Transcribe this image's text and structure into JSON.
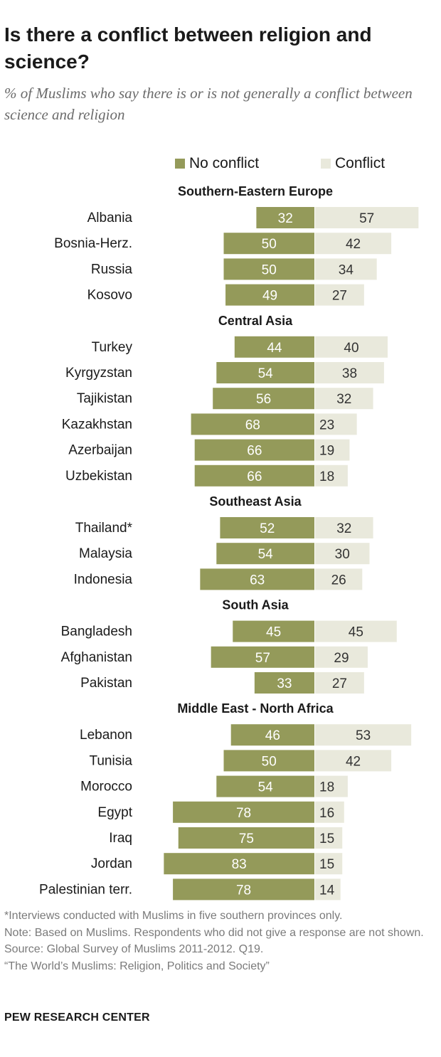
{
  "header": {
    "title": "Is there a conflict between religion and science?",
    "subtitle": "% of Muslims who say there is or is not generally a conflict between science and religion"
  },
  "legend": {
    "no_conflict": "No conflict",
    "conflict": "Conflict"
  },
  "colors": {
    "no_conflict": "#949a5a",
    "conflict": "#e9e9dc",
    "no_conflict_label": "#ffffff",
    "conflict_label": "#333333"
  },
  "chart_data": {
    "type": "bar",
    "orientation": "horizontal-diverging",
    "series": [
      {
        "name": "No conflict"
      },
      {
        "name": "Conflict"
      }
    ],
    "groups": [
      {
        "name": "Southern-Eastern Europe",
        "rows": [
          {
            "label": "Albania",
            "no_conflict": 32,
            "conflict": 57
          },
          {
            "label": "Bosnia-Herz.",
            "no_conflict": 50,
            "conflict": 42
          },
          {
            "label": "Russia",
            "no_conflict": 50,
            "conflict": 34
          },
          {
            "label": "Kosovo",
            "no_conflict": 49,
            "conflict": 27
          }
        ]
      },
      {
        "name": "Central Asia",
        "rows": [
          {
            "label": "Turkey",
            "no_conflict": 44,
            "conflict": 40
          },
          {
            "label": "Kyrgyzstan",
            "no_conflict": 54,
            "conflict": 38
          },
          {
            "label": "Tajikistan",
            "no_conflict": 56,
            "conflict": 32
          },
          {
            "label": "Kazakhstan",
            "no_conflict": 68,
            "conflict": 23
          },
          {
            "label": "Azerbaijan",
            "no_conflict": 66,
            "conflict": 19
          },
          {
            "label": "Uzbekistan",
            "no_conflict": 66,
            "conflict": 18
          }
        ]
      },
      {
        "name": "Southeast Asia",
        "rows": [
          {
            "label": "Thailand*",
            "no_conflict": 52,
            "conflict": 32
          },
          {
            "label": "Malaysia",
            "no_conflict": 54,
            "conflict": 30
          },
          {
            "label": "Indonesia",
            "no_conflict": 63,
            "conflict": 26
          }
        ]
      },
      {
        "name": "South Asia",
        "rows": [
          {
            "label": "Bangladesh",
            "no_conflict": 45,
            "conflict": 45
          },
          {
            "label": "Afghanistan",
            "no_conflict": 57,
            "conflict": 29
          },
          {
            "label": "Pakistan",
            "no_conflict": 33,
            "conflict": 27
          }
        ]
      },
      {
        "name": "Middle East - North Africa",
        "rows": [
          {
            "label": "Lebanon",
            "no_conflict": 46,
            "conflict": 53
          },
          {
            "label": "Tunisia",
            "no_conflict": 50,
            "conflict": 42
          },
          {
            "label": "Morocco",
            "no_conflict": 54,
            "conflict": 18
          },
          {
            "label": "Egypt",
            "no_conflict": 78,
            "conflict": 16
          },
          {
            "label": "Iraq",
            "no_conflict": 75,
            "conflict": 15
          },
          {
            "label": "Jordan",
            "no_conflict": 83,
            "conflict": 15
          },
          {
            "label": "Palestinian terr.",
            "no_conflict": 78,
            "conflict": 14
          }
        ]
      }
    ]
  },
  "notes": {
    "footnote": "*Interviews conducted with Muslims in five southern provinces only.",
    "note": "Note: Based on Muslims. Respondents who did not give a response are not shown.",
    "source": "Source: Global Survey of Muslims 2011-2012. Q19.",
    "report": "“The World’s Muslims: Religion, Politics and Society”"
  },
  "brand": "PEW RESEARCH CENTER"
}
